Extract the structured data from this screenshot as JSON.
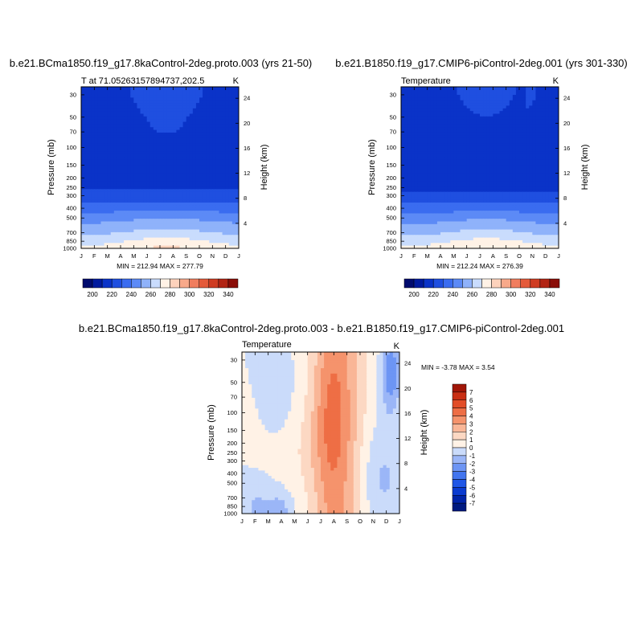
{
  "chart_data": [
    {
      "type": "heatmap",
      "title": "b.e21.BCma1850.f19_g17.8kaControl-2deg.proto.003 (yrs 21-50)",
      "left_label": "T at 71.05263157894737,202.5",
      "right_label": "K",
      "xlabel": "",
      "ylabel": "Pressure (mb)",
      "ylabel_right": "Height (km)",
      "x_ticks": [
        "J",
        "F",
        "M",
        "A",
        "M",
        "J",
        "J",
        "A",
        "S",
        "O",
        "N",
        "D",
        "J"
      ],
      "y_ticks": [
        30,
        50,
        70,
        100,
        150,
        200,
        250,
        300,
        400,
        500,
        700,
        850,
        1000
      ],
      "y_ticks_right": [
        24,
        20,
        16,
        12,
        8,
        4
      ],
      "ylim": [
        1000,
        25
      ],
      "stats": "MIN = 212.94 MAX = 277.79",
      "min": 212.94,
      "max": 277.79,
      "colorbar_ticks": [
        200,
        220,
        240,
        260,
        280,
        300,
        320,
        340
      ],
      "levels": [
        190,
        200,
        210,
        220,
        230,
        240,
        250,
        260,
        270,
        280,
        290,
        300,
        310,
        320,
        330,
        340,
        350
      ],
      "base_levels": [
        [
          1000,
          276
        ],
        [
          850,
          269
        ],
        [
          700,
          260
        ],
        [
          500,
          247
        ],
        [
          400,
          236
        ],
        [
          300,
          223
        ],
        [
          250,
          219
        ],
        [
          200,
          216
        ],
        [
          150,
          216
        ],
        [
          100,
          216
        ],
        [
          70,
          217
        ],
        [
          50,
          217
        ],
        [
          30,
          218
        ]
      ]
    },
    {
      "type": "heatmap",
      "title": "b.e21.B1850.f19_g17.CMIP6-piControl-2deg.001 (yrs 301-330)",
      "left_label": "Temperature",
      "right_label": "K",
      "xlabel": "",
      "ylabel": "Pressure (mb)",
      "ylabel_right": "Height (km)",
      "x_ticks": [
        "J",
        "F",
        "M",
        "A",
        "M",
        "J",
        "J",
        "A",
        "S",
        "O",
        "N",
        "D",
        "J"
      ],
      "y_ticks": [
        30,
        50,
        70,
        100,
        150,
        200,
        250,
        300,
        400,
        500,
        700,
        850,
        1000
      ],
      "y_ticks_right": [
        24,
        20,
        16,
        12,
        8,
        4
      ],
      "ylim": [
        1000,
        25
      ],
      "stats": "MIN = 212.24 MAX = 276.39",
      "min": 212.24,
      "max": 276.39,
      "colorbar_ticks": [
        200,
        220,
        240,
        260,
        280,
        300,
        320,
        340
      ],
      "levels": [
        190,
        200,
        210,
        220,
        230,
        240,
        250,
        260,
        270,
        280,
        290,
        300,
        310,
        320,
        330,
        340,
        350
      ],
      "base_levels": [
        [
          1000,
          275
        ],
        [
          850,
          268
        ],
        [
          700,
          259
        ],
        [
          500,
          246
        ],
        [
          400,
          235
        ],
        [
          300,
          222
        ],
        [
          250,
          218
        ],
        [
          200,
          215
        ],
        [
          150,
          215
        ],
        [
          100,
          215
        ],
        [
          70,
          216
        ],
        [
          50,
          216
        ],
        [
          30,
          217
        ]
      ]
    },
    {
      "type": "heatmap",
      "title": "b.e21.BCma1850.f19_g17.8kaControl-2deg.proto.003 - b.e21.B1850.f19_g17.CMIP6-piControl-2deg.001",
      "left_label": "Temperature",
      "right_label": "K",
      "xlabel": "",
      "ylabel": "Pressure (mb)",
      "ylabel_right": "Height (km)",
      "x_ticks": [
        "J",
        "F",
        "M",
        "A",
        "M",
        "J",
        "J",
        "A",
        "S",
        "O",
        "N",
        "D",
        "J"
      ],
      "y_ticks": [
        30,
        50,
        70,
        100,
        150,
        200,
        250,
        300,
        400,
        500,
        700,
        850,
        1000
      ],
      "y_ticks_right": [
        24,
        20,
        16,
        12,
        8,
        4
      ],
      "ylim": [
        1000,
        25
      ],
      "stats": "MIN =  -3.78 MAX =   3.54",
      "min": -3.78,
      "max": 3.54,
      "colorbar_ticks": [
        7,
        6,
        5,
        4,
        3,
        2,
        1,
        0,
        -1,
        -2,
        -3,
        -4,
        -5,
        -6,
        -7
      ],
      "levels": [
        -8,
        -7,
        -6,
        -5,
        -4,
        -3,
        -2,
        -1,
        0,
        1,
        2,
        3,
        4,
        5,
        6,
        7,
        8
      ]
    }
  ],
  "colors": {
    "abs_palette": [
      "#000b6e",
      "#001a9e",
      "#0a33c8",
      "#1f4fe0",
      "#3a6cf0",
      "#5c8af6",
      "#8fb2fa",
      "#c9dcfd",
      "#fff2e6",
      "#fdd2bc",
      "#f8a98a",
      "#f07d5e",
      "#e45a3a",
      "#cf3c22",
      "#b22414",
      "#8a0d08"
    ],
    "diff_palette": [
      "#001a80",
      "#0024a8",
      "#0a3bd0",
      "#1f56e6",
      "#4275ef",
      "#6d95f4",
      "#9bb6f7",
      "#cadbfa",
      "#fff2e6",
      "#fcd8c3",
      "#f9b697",
      "#f5936c",
      "#ee6e45",
      "#e24d28",
      "#c92f14",
      "#a11608"
    ]
  }
}
